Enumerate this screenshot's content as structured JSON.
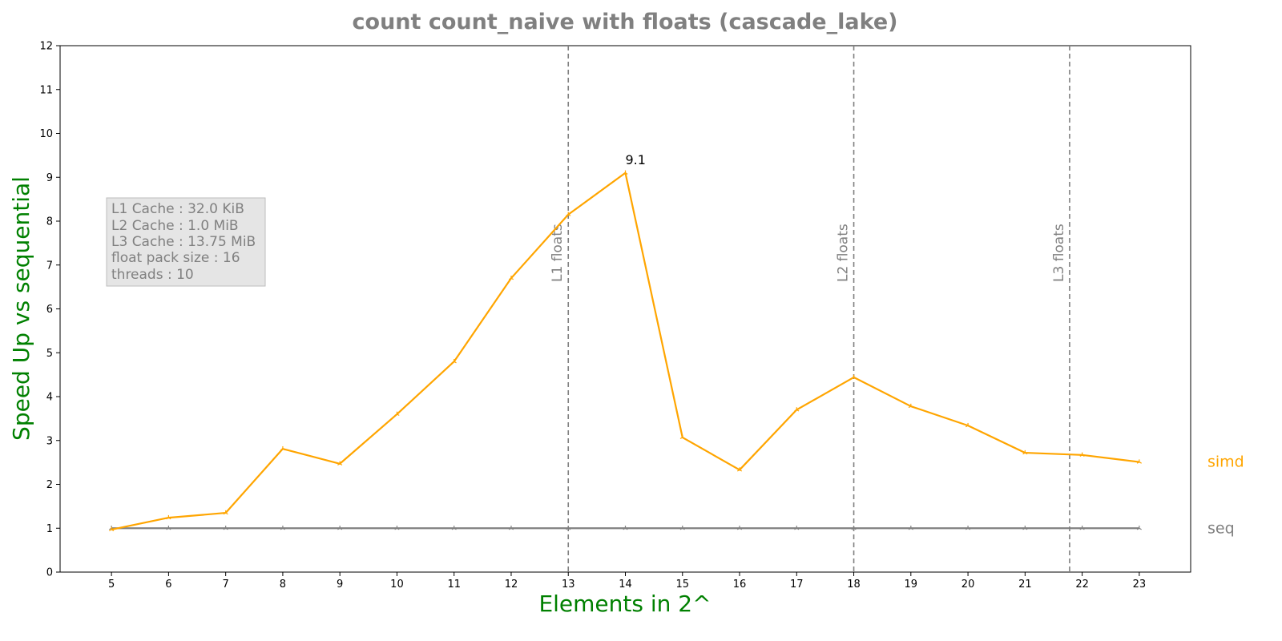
{
  "chart_data": {
    "type": "line",
    "title": "count count_naive with floats  (cascade_lake)",
    "xlabel": "Elements in 2^",
    "ylabel": "Speed Up vs sequential",
    "x": [
      5,
      6,
      7,
      8,
      9,
      10,
      11,
      12,
      13,
      14,
      15,
      16,
      17,
      18,
      19,
      20,
      21,
      22,
      23
    ],
    "xticks": [
      "5",
      "6",
      "7",
      "8",
      "9",
      "10",
      "11",
      "12",
      "13",
      "14",
      "15",
      "16",
      "17",
      "18",
      "19",
      "20",
      "21",
      "22",
      "23"
    ],
    "xlim": [
      4.1,
      23.9
    ],
    "ylim": [
      0,
      12
    ],
    "yticks": [
      "0",
      "1",
      "2",
      "3",
      "4",
      "5",
      "6",
      "7",
      "8",
      "9",
      "10",
      "11",
      "12"
    ],
    "grid": false,
    "series": [
      {
        "name": "simd",
        "color": "#FFA500",
        "values": [
          0.97,
          1.24,
          1.35,
          2.81,
          2.47,
          3.6,
          4.8,
          6.7,
          8.15,
          9.1,
          3.07,
          2.33,
          3.7,
          4.44,
          3.78,
          3.34,
          2.72,
          2.67,
          2.51
        ]
      },
      {
        "name": "seq",
        "color": "#808080",
        "values": [
          1,
          1,
          1,
          1,
          1,
          1,
          1,
          1,
          1,
          1,
          1,
          1,
          1,
          1,
          1,
          1,
          1,
          1,
          1
        ]
      }
    ],
    "annotations": [
      {
        "text": "9.1",
        "x": 14,
        "y": 9.1
      }
    ],
    "vlines": [
      {
        "x": 13,
        "label": "L1 floats"
      },
      {
        "x": 18,
        "label": "L2 floats"
      },
      {
        "x": 21.78,
        "label": "L3 floats"
      }
    ],
    "info_box": [
      "L1 Cache : 32.0 KiB",
      "L2 Cache : 1.0 MiB",
      "L3 Cache : 13.75 MiB",
      "float pack size : 16",
      "threads : 10"
    ],
    "colors": {
      "title": "#808080",
      "axis_label": "#008000",
      "vline": "#808080",
      "info_text": "#808080",
      "info_bg": "#E5E5E5"
    }
  }
}
